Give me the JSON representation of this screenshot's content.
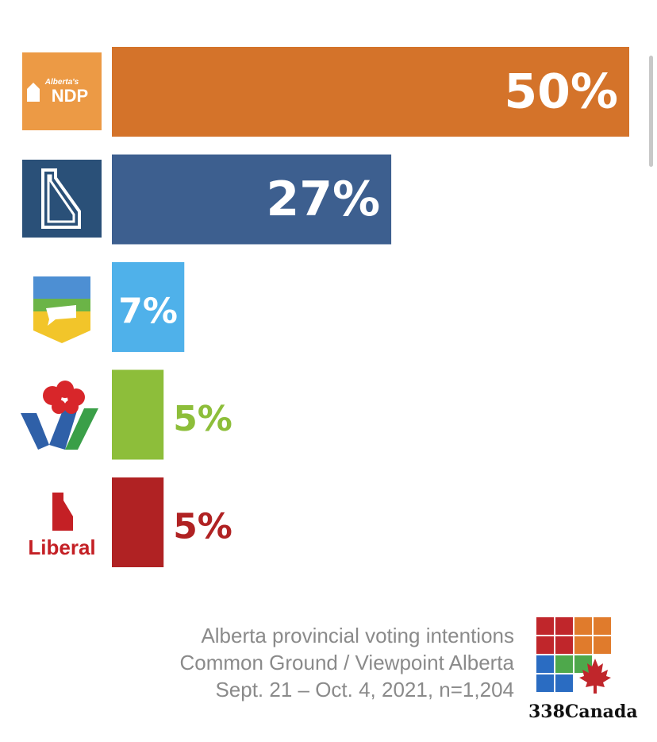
{
  "chart_data": {
    "type": "bar",
    "orientation": "horizontal",
    "categories": [
      "Alberta's NDP",
      "UCP",
      "Alberta Party",
      "Wildrose Independence",
      "Liberal"
    ],
    "values": [
      50,
      27,
      7,
      5,
      5
    ],
    "value_labels": [
      "50%",
      "27%",
      "7%",
      "5%",
      "5%"
    ],
    "colors": [
      "#d4732a",
      "#3d5f8f",
      "#4fb1ea",
      "#8dbe3a",
      "#b02223"
    ],
    "xlim": [
      0,
      50
    ],
    "grid": false,
    "legend": "none"
  },
  "logos": {
    "ndp_top": "Alberta's",
    "ndp_main": "NDP",
    "liberal_text": "Liberal"
  },
  "footer": {
    "line1": "Alberta provincial voting intentions",
    "line2": "Common Ground / Viewpoint Alberta",
    "line3": "Sept. 21 – Oct. 4, 2021, n=1,204"
  },
  "brand": {
    "name": "338Canada",
    "icon": "maple-leaf-grid-icon"
  }
}
